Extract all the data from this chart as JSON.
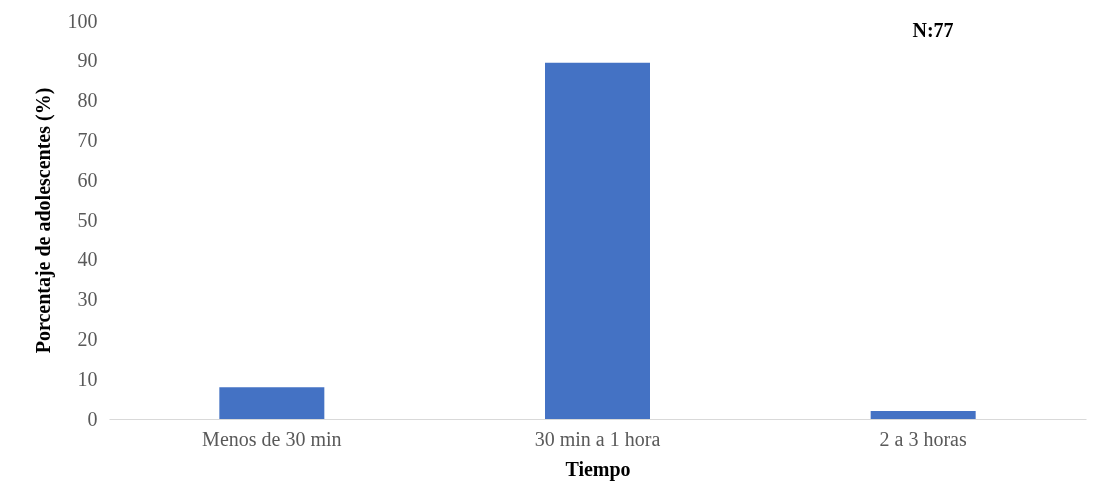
{
  "chart_data": {
    "type": "bar",
    "xlabel": "Tiempo",
    "ylabel": "Porcentaje de adolescentes (%)",
    "categories": [
      "Menos de 30 min",
      "30 min a 1 hora",
      "2 a 3 horas"
    ],
    "values": [
      8,
      89.5,
      2
    ],
    "color": "#4472c4",
    "ylim": [
      0,
      100
    ],
    "yticks": [
      0,
      10,
      20,
      30,
      40,
      50,
      60,
      70,
      80,
      90,
      100
    ],
    "grid": false,
    "annotations": [
      "N:77"
    ]
  }
}
